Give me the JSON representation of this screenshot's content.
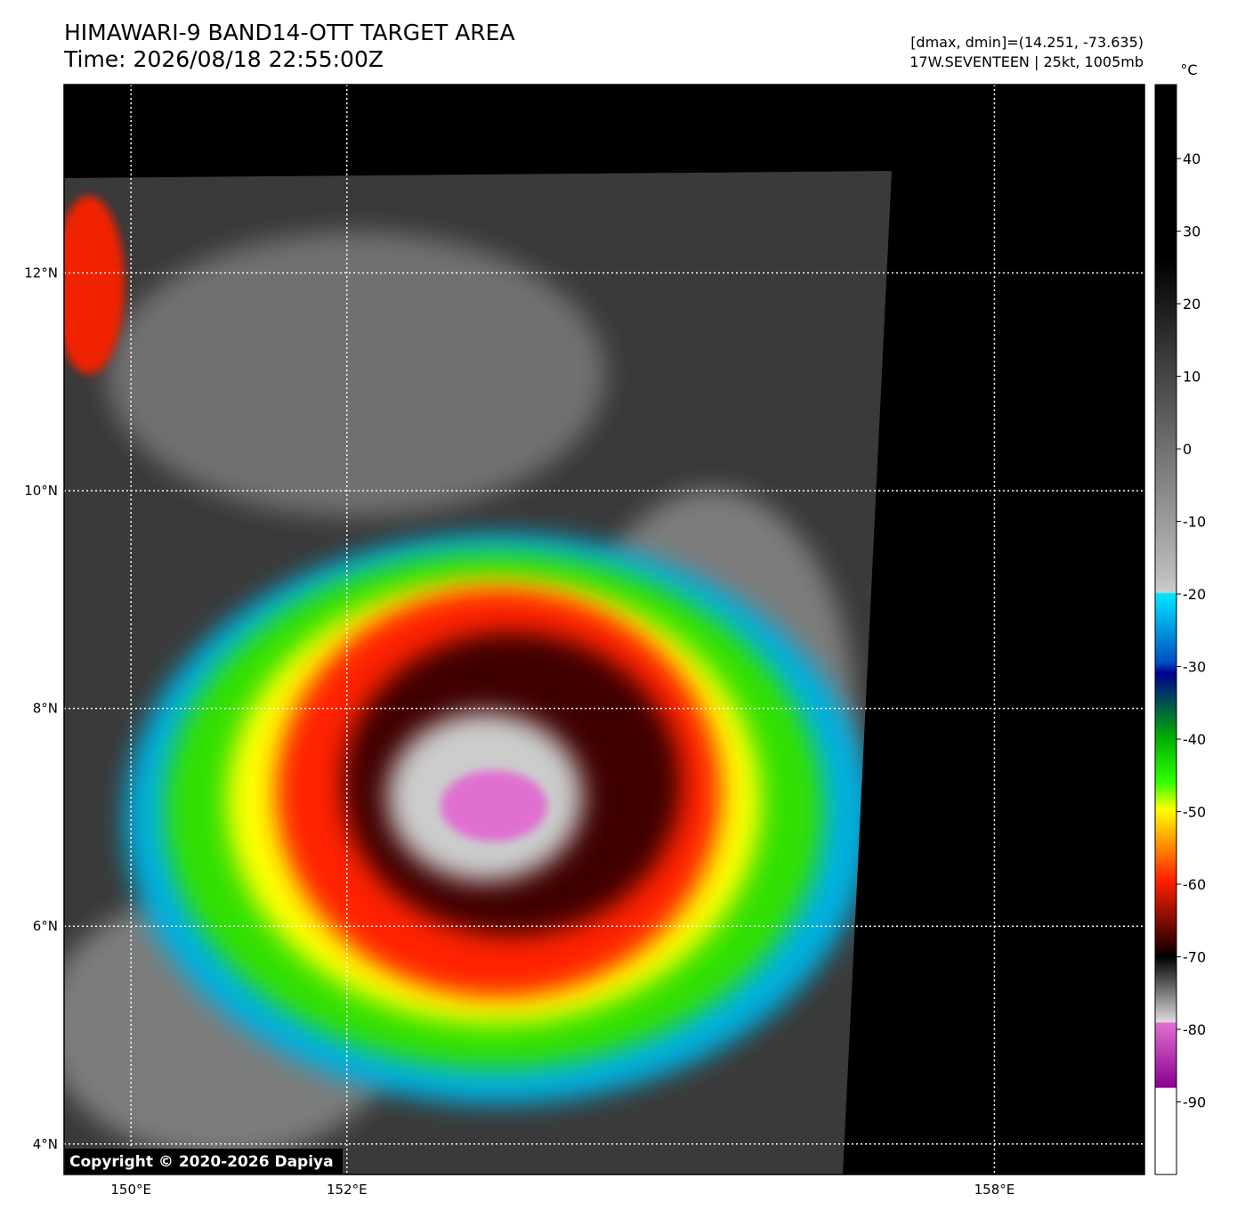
{
  "title": "HIMAWARI-9 BAND14-OTT TARGET AREA",
  "time": "Time: 2026/08/18 22:55:00Z",
  "dmax_line": "[dmax, dmin]=(14.251, -73.635)",
  "storm_line": "17W.SEVENTEEN | 25kt, 1005mb",
  "copyright": "Copyright © 2020-2026 Dapiya",
  "map": {
    "lon_range": [
      149.38,
      159.39
    ],
    "lat_range": [
      3.72,
      13.73
    ],
    "lat_ticks": [
      {
        "value": 12,
        "label": "12°N"
      },
      {
        "value": 10,
        "label": "10°N"
      },
      {
        "value": 8,
        "label": "8°N"
      },
      {
        "value": 6,
        "label": "6°N"
      },
      {
        "value": 4,
        "label": "4°N"
      }
    ],
    "lon_ticks": [
      {
        "value": 150,
        "label": "150°E"
      },
      {
        "value": 152,
        "label": "152°E"
      },
      {
        "value": 158,
        "label": "158°E"
      }
    ]
  },
  "colorbar": {
    "unit": "°C",
    "range": [
      -100,
      50.2
    ],
    "ticks": [
      40,
      30,
      20,
      10,
      0,
      -10,
      -20,
      -30,
      -40,
      -50,
      -60,
      -70,
      -80,
      -90
    ]
  }
}
